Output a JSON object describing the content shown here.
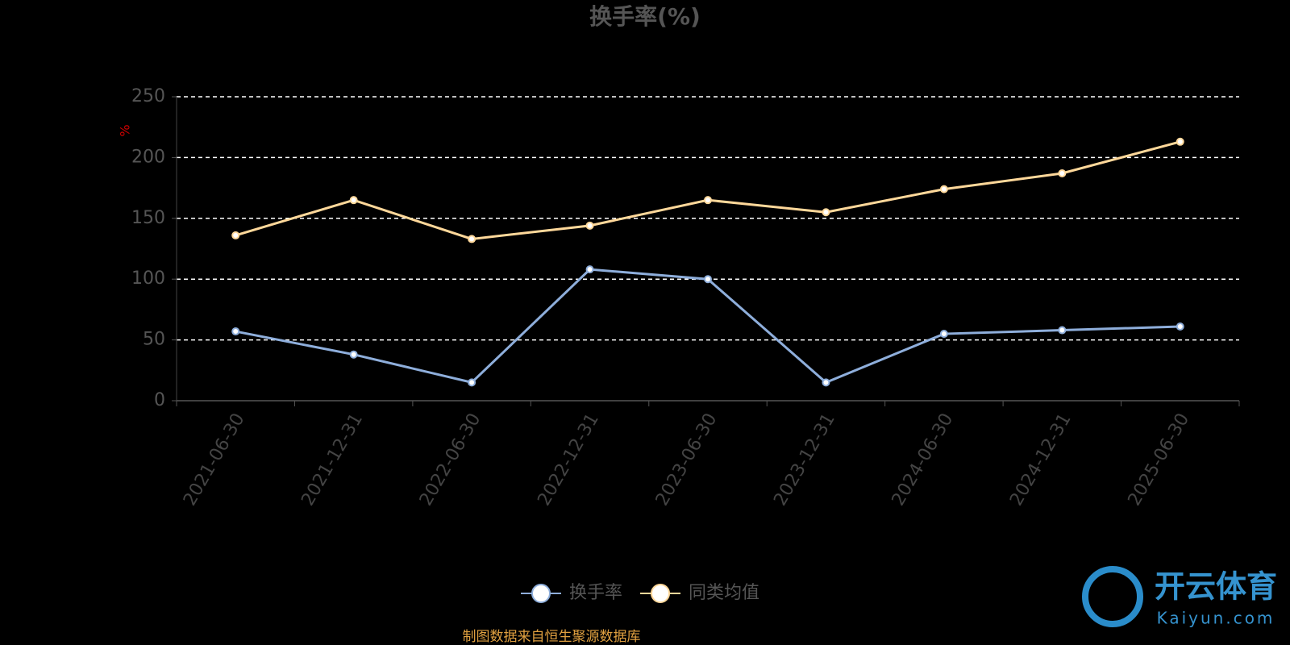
{
  "chart_data": {
    "type": "line",
    "title": "换手率(%)",
    "y_label": "%",
    "categories": [
      "2021-06-30",
      "2021-12-31",
      "2022-06-30",
      "2022-12-31",
      "2023-06-30",
      "2023-12-31",
      "2024-06-30",
      "2024-12-31",
      "2025-06-30"
    ],
    "series": [
      {
        "name": "换手率",
        "color": "#8eaedb",
        "values": [
          57,
          38,
          15,
          108,
          100,
          15,
          55,
          58,
          61
        ]
      },
      {
        "name": "同类均值",
        "color": "#ffd89a",
        "values": [
          136,
          165,
          133,
          144,
          165,
          155,
          174,
          187,
          213
        ]
      }
    ],
    "ylim": [
      0,
      250
    ],
    "yticks": [
      0,
      50,
      100,
      150,
      200,
      250
    ],
    "grid": true,
    "source": "制图数据来自恒生聚源数据库",
    "watermark": {
      "brand": "开云体育",
      "site": "Kaiyun.com"
    }
  }
}
